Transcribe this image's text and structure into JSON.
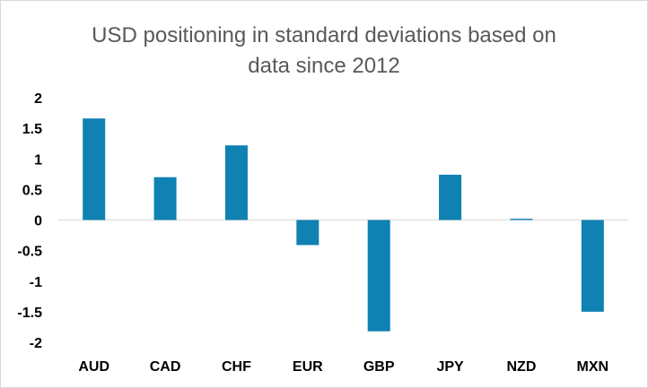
{
  "chart_data": {
    "type": "bar",
    "title": "USD positioning in standard deviations based on\ndata since 2012",
    "categories": [
      "AUD",
      "CAD",
      "CHF",
      "EUR",
      "GBP",
      "JPY",
      "NZD",
      "MXN"
    ],
    "values": [
      1.66,
      0.7,
      1.22,
      -0.41,
      -1.82,
      0.74,
      0.02,
      -1.5
    ],
    "ylim": [
      -2,
      2
    ],
    "yticks": [
      2,
      1.5,
      1,
      0.5,
      0,
      -0.5,
      -1,
      -1.5,
      -2
    ],
    "ytick_labels": [
      "2",
      "1.5",
      "1",
      "0.5",
      "0",
      "-0.5",
      "-1",
      "-1.5",
      "-2"
    ],
    "xlabel": "",
    "ylabel": "",
    "grid": false,
    "bar_color": "#0f81b2",
    "axis_color": "#d9d9d9"
  }
}
